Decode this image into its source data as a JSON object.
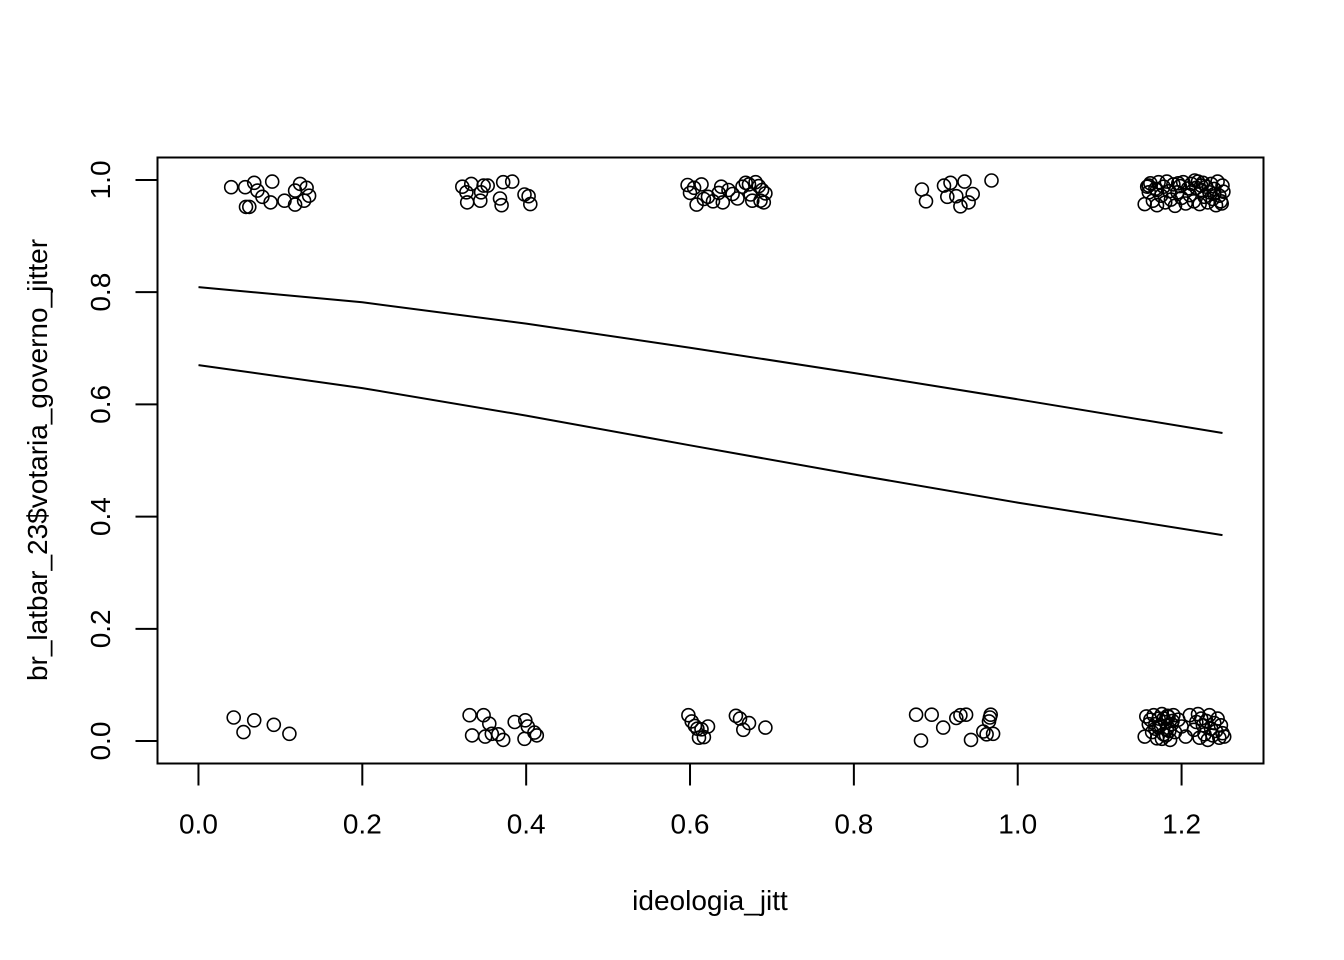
{
  "chart_data": {
    "type": "scatter",
    "title": "",
    "xlabel": "ideologia_jitt",
    "ylabel": "br_latbar_23$votaria_governo_jitter",
    "xlim": [
      -0.05,
      1.3
    ],
    "ylim": [
      -0.04,
      1.04
    ],
    "x_ticks": [
      "0.0",
      "0.2",
      "0.4",
      "0.6",
      "0.8",
      "1.0",
      "1.2"
    ],
    "y_ticks": [
      "0.0",
      "0.2",
      "0.4",
      "0.6",
      "0.8",
      "1.0"
    ],
    "grid": false,
    "legend": "none",
    "colors": {
      "ink": "#000000",
      "background": "#ffffff"
    },
    "series": [
      {
        "kind": "points",
        "marker": "open-circle",
        "points": [
          [
            0.04,
            0.987
          ],
          [
            0.057,
            0.987
          ],
          [
            0.068,
            0.995
          ],
          [
            0.072,
            0.981
          ],
          [
            0.09,
            0.997
          ],
          [
            0.078,
            0.97
          ],
          [
            0.058,
            0.952
          ],
          [
            0.062,
            0.952
          ],
          [
            0.088,
            0.96
          ],
          [
            0.105,
            0.963
          ],
          [
            0.118,
            0.981
          ],
          [
            0.124,
            0.993
          ],
          [
            0.132,
            0.986
          ],
          [
            0.129,
            0.963
          ],
          [
            0.135,
            0.972
          ],
          [
            0.118,
            0.956
          ],
          [
            0.322,
            0.988
          ],
          [
            0.327,
            0.978
          ],
          [
            0.333,
            0.993
          ],
          [
            0.328,
            0.96
          ],
          [
            0.345,
            0.978
          ],
          [
            0.344,
            0.963
          ],
          [
            0.348,
            0.99
          ],
          [
            0.353,
            0.99
          ],
          [
            0.368,
            0.967
          ],
          [
            0.372,
            0.996
          ],
          [
            0.383,
            0.997
          ],
          [
            0.37,
            0.955
          ],
          [
            0.398,
            0.974
          ],
          [
            0.403,
            0.971
          ],
          [
            0.405,
            0.957
          ],
          [
            0.597,
            0.991
          ],
          [
            0.6,
            0.977
          ],
          [
            0.605,
            0.986
          ],
          [
            0.608,
            0.956
          ],
          [
            0.614,
            0.992
          ],
          [
            0.617,
            0.966
          ],
          [
            0.622,
            0.97
          ],
          [
            0.628,
            0.962
          ],
          [
            0.635,
            0.977
          ],
          [
            0.638,
            0.988
          ],
          [
            0.64,
            0.96
          ],
          [
            0.647,
            0.982
          ],
          [
            0.652,
            0.975
          ],
          [
            0.658,
            0.967
          ],
          [
            0.664,
            0.988
          ],
          [
            0.668,
            0.995
          ],
          [
            0.672,
            0.992
          ],
          [
            0.674,
            0.974
          ],
          [
            0.676,
            0.963
          ],
          [
            0.68,
            0.996
          ],
          [
            0.684,
            0.989
          ],
          [
            0.686,
            0.963
          ],
          [
            0.688,
            0.982
          ],
          [
            0.69,
            0.96
          ],
          [
            0.692,
            0.976
          ],
          [
            0.883,
            0.983
          ],
          [
            0.888,
            0.962
          ],
          [
            0.91,
            0.99
          ],
          [
            0.914,
            0.97
          ],
          [
            0.918,
            0.995
          ],
          [
            0.925,
            0.971
          ],
          [
            0.93,
            0.953
          ],
          [
            0.935,
            0.997
          ],
          [
            0.94,
            0.96
          ],
          [
            0.945,
            0.975
          ],
          [
            0.968,
            0.999
          ],
          [
            1.155,
            0.957
          ],
          [
            1.158,
            0.988
          ],
          [
            1.16,
            0.978
          ],
          [
            1.162,
            0.994
          ],
          [
            1.165,
            0.963
          ],
          [
            1.168,
            0.984
          ],
          [
            1.17,
            0.955
          ],
          [
            1.172,
            0.996
          ],
          [
            1.175,
            0.972
          ],
          [
            1.178,
            0.988
          ],
          [
            1.18,
            0.96
          ],
          [
            1.182,
            0.997
          ],
          [
            1.185,
            0.98
          ],
          [
            1.187,
            0.965
          ],
          [
            1.19,
            0.992
          ],
          [
            1.192,
            0.954
          ],
          [
            1.195,
            0.978
          ],
          [
            1.198,
            0.989
          ],
          [
            1.2,
            0.968
          ],
          [
            1.202,
            0.996
          ],
          [
            1.205,
            0.958
          ],
          [
            1.208,
            0.985
          ],
          [
            1.21,
            0.973
          ],
          [
            1.212,
            0.993
          ],
          [
            1.215,
            0.962
          ],
          [
            1.218,
            0.986
          ],
          [
            1.22,
            0.997
          ],
          [
            1.222,
            0.957
          ],
          [
            1.224,
            0.982
          ],
          [
            1.226,
            0.995
          ],
          [
            1.228,
            0.97
          ],
          [
            1.23,
            0.988
          ],
          [
            1.232,
            0.96
          ],
          [
            1.234,
            0.978
          ],
          [
            1.236,
            0.993
          ],
          [
            1.238,
            0.966
          ],
          [
            1.24,
            0.984
          ],
          [
            1.242,
            0.955
          ],
          [
            1.244,
            0.997
          ],
          [
            1.246,
            0.972
          ],
          [
            1.248,
            0.962
          ],
          [
            1.25,
            0.99
          ],
          [
            1.251,
            0.979
          ],
          [
            1.249,
            0.958
          ],
          [
            1.16,
            0.99
          ],
          [
            1.17,
            0.982
          ],
          [
            1.196,
            0.994
          ],
          [
            1.216,
            0.999
          ],
          [
            1.224,
            0.99
          ],
          [
            1.24,
            0.975
          ],
          [
            0.043,
            0.042
          ],
          [
            0.055,
            0.016
          ],
          [
            0.068,
            0.037
          ],
          [
            0.092,
            0.029
          ],
          [
            0.111,
            0.013
          ],
          [
            0.331,
            0.046
          ],
          [
            0.334,
            0.01
          ],
          [
            0.348,
            0.046
          ],
          [
            0.35,
            0.008
          ],
          [
            0.355,
            0.031
          ],
          [
            0.358,
            0.013
          ],
          [
            0.366,
            0.012
          ],
          [
            0.372,
            0.002
          ],
          [
            0.386,
            0.034
          ],
          [
            0.399,
            0.037
          ],
          [
            0.398,
            0.004
          ],
          [
            0.402,
            0.026
          ],
          [
            0.41,
            0.015
          ],
          [
            0.413,
            0.01
          ],
          [
            0.598,
            0.046
          ],
          [
            0.602,
            0.035
          ],
          [
            0.606,
            0.027
          ],
          [
            0.609,
            0.022
          ],
          [
            0.611,
            0.006
          ],
          [
            0.614,
            0.021
          ],
          [
            0.617,
            0.007
          ],
          [
            0.622,
            0.026
          ],
          [
            0.656,
            0.045
          ],
          [
            0.661,
            0.04
          ],
          [
            0.665,
            0.02
          ],
          [
            0.672,
            0.032
          ],
          [
            0.692,
            0.024
          ],
          [
            0.876,
            0.047
          ],
          [
            0.882,
            0.001
          ],
          [
            0.895,
            0.047
          ],
          [
            0.909,
            0.024
          ],
          [
            0.925,
            0.041
          ],
          [
            0.93,
            0.046
          ],
          [
            0.937,
            0.047
          ],
          [
            0.943,
            0.002
          ],
          [
            0.958,
            0.017
          ],
          [
            0.962,
            0.012
          ],
          [
            0.965,
            0.035
          ],
          [
            0.966,
            0.042
          ],
          [
            0.967,
            0.047
          ],
          [
            0.97,
            0.013
          ],
          [
            1.155,
            0.008
          ],
          [
            1.157,
            0.044
          ],
          [
            1.16,
            0.03
          ],
          [
            1.162,
            0.038
          ],
          [
            1.164,
            0.016
          ],
          [
            1.166,
            0.046
          ],
          [
            1.168,
            0.022
          ],
          [
            1.17,
            0.005
          ],
          [
            1.172,
            0.04
          ],
          [
            1.174,
            0.028
          ],
          [
            1.176,
            0.048
          ],
          [
            1.178,
            0.012
          ],
          [
            1.18,
            0.034
          ],
          [
            1.182,
            0.02
          ],
          [
            1.184,
            0.043
          ],
          [
            1.186,
            0.002
          ],
          [
            1.188,
            0.03
          ],
          [
            1.19,
            0.046
          ],
          [
            1.192,
            0.016
          ],
          [
            1.196,
            0.038
          ],
          [
            1.2,
            0.026
          ],
          [
            1.205,
            0.008
          ],
          [
            1.21,
            0.046
          ],
          [
            1.215,
            0.02
          ],
          [
            1.218,
            0.034
          ],
          [
            1.22,
            0.048
          ],
          [
            1.222,
            0.006
          ],
          [
            1.224,
            0.04
          ],
          [
            1.226,
            0.028
          ],
          [
            1.228,
            0.012
          ],
          [
            1.23,
            0.036
          ],
          [
            1.232,
            0.002
          ],
          [
            1.234,
            0.046
          ],
          [
            1.236,
            0.022
          ],
          [
            1.238,
            0.01
          ],
          [
            1.24,
            0.032
          ],
          [
            1.242,
            0.018
          ],
          [
            1.244,
            0.04
          ],
          [
            1.246,
            0.006
          ],
          [
            1.248,
            0.028
          ],
          [
            1.25,
            0.014
          ],
          [
            1.252,
            0.008
          ],
          [
            1.168,
            0.03
          ],
          [
            1.178,
            0.04
          ],
          [
            1.185,
            0.018
          ],
          [
            1.172,
            0.024
          ],
          [
            1.181,
            0.01
          ],
          [
            1.189,
            0.036
          ],
          [
            1.176,
            0.004
          ],
          [
            1.183,
            0.045
          ]
        ]
      },
      {
        "kind": "line",
        "points": [
          [
            0.0,
            0.809
          ],
          [
            0.2,
            0.782
          ],
          [
            0.4,
            0.744
          ],
          [
            0.6,
            0.701
          ],
          [
            0.8,
            0.656
          ],
          [
            1.0,
            0.609
          ],
          [
            1.25,
            0.549
          ]
        ]
      },
      {
        "kind": "line",
        "points": [
          [
            0.0,
            0.67
          ],
          [
            0.2,
            0.629
          ],
          [
            0.4,
            0.58
          ],
          [
            0.6,
            0.527
          ],
          [
            0.8,
            0.475
          ],
          [
            1.0,
            0.425
          ],
          [
            1.25,
            0.367
          ]
        ]
      }
    ]
  }
}
